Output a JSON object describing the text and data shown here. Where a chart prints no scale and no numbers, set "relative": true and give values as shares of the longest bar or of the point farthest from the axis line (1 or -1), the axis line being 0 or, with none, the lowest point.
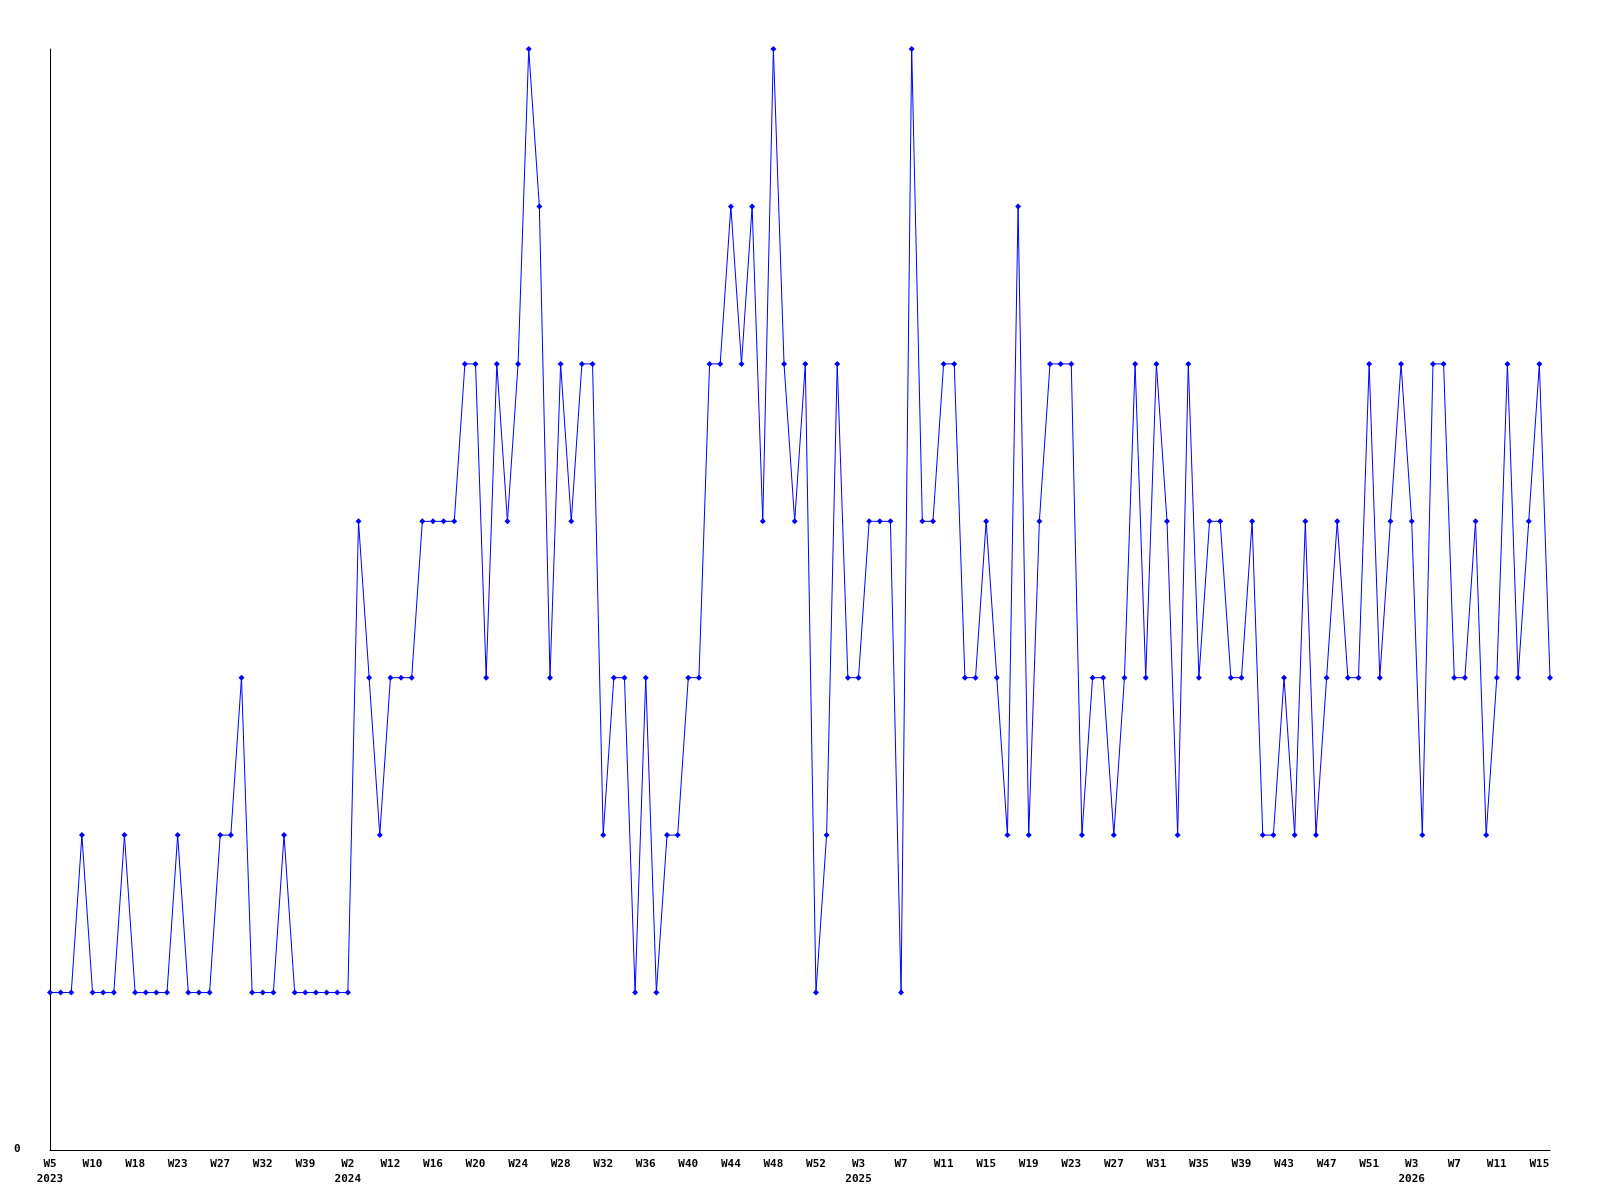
{
  "chart_data": {
    "type": "line",
    "relative": true,
    "marker": "diamond",
    "line_style": "solid",
    "annotations": [
      "0"
    ],
    "categories": [
      "W5\n2023",
      null,
      null,
      null,
      "W10",
      null,
      null,
      null,
      "W18",
      null,
      null,
      null,
      "W23",
      null,
      null,
      null,
      "W27",
      null,
      null,
      null,
      "W32",
      null,
      null,
      null,
      "W39",
      null,
      null,
      null,
      "W2\n2024",
      null,
      null,
      null,
      "W12",
      null,
      null,
      null,
      "W16",
      null,
      null,
      null,
      "W20",
      null,
      null,
      null,
      "W24",
      null,
      null,
      null,
      "W28",
      null,
      null,
      null,
      "W32",
      null,
      null,
      null,
      "W36",
      null,
      null,
      null,
      "W40",
      null,
      null,
      null,
      "W44",
      null,
      null,
      null,
      "W48",
      null,
      null,
      null,
      "W52",
      null,
      null,
      null,
      "W3\n2025",
      null,
      null,
      null,
      "W7",
      null,
      null,
      null,
      "W11",
      null,
      null,
      null,
      "W15",
      null,
      null,
      null,
      "W19",
      null,
      null,
      null,
      "W23",
      null,
      null,
      null,
      "W27",
      null,
      null,
      null,
      "W31",
      null,
      null,
      null,
      "W35",
      null,
      null,
      null,
      "W39",
      null,
      null,
      null,
      "W43",
      null,
      null,
      null,
      "W47",
      null,
      null,
      null,
      "W51",
      null,
      null,
      null,
      "W3\n2026",
      null,
      null,
      null,
      "W7",
      null,
      null,
      null,
      "W11",
      null,
      null,
      null,
      "W15",
      null
    ],
    "series": [
      {
        "color": "#0000ff",
        "values": [
          0.143,
          0.143,
          0.143,
          0.286,
          0.143,
          0.143,
          0.143,
          0.286,
          0.143,
          0.143,
          0.143,
          0.143,
          0.286,
          0.143,
          0.143,
          0.143,
          0.286,
          0.286,
          0.429,
          0.143,
          0.143,
          0.143,
          0.286,
          0.143,
          0.143,
          0.143,
          0.143,
          0.143,
          0.143,
          0.571,
          0.429,
          0.286,
          0.429,
          0.429,
          0.429,
          0.571,
          0.571,
          0.571,
          0.571,
          0.714,
          0.714,
          0.429,
          0.714,
          0.571,
          0.714,
          1,
          0.857,
          0.429,
          0.714,
          0.571,
          0.714,
          0.714,
          0.286,
          0.429,
          0.429,
          0.143,
          0.429,
          0.143,
          0.286,
          0.286,
          0.429,
          0.429,
          0.714,
          0.714,
          0.857,
          0.714,
          0.857,
          0.571,
          1,
          0.714,
          0.571,
          0.714,
          0.143,
          0.286,
          0.714,
          0.429,
          0.429,
          0.571,
          0.571,
          0.571,
          0.143,
          1,
          0.571,
          0.571,
          0.714,
          0.714,
          0.429,
          0.429,
          0.571,
          0.429,
          0.286,
          0.857,
          0.286,
          0.571,
          0.714,
          0.714,
          0.714,
          0.286,
          0.429,
          0.429,
          0.286,
          0.429,
          0.714,
          0.429,
          0.714,
          0.571,
          0.286,
          0.714,
          0.429,
          0.571,
          0.571,
          0.429,
          0.429,
          0.571,
          0.286,
          0.286,
          0.429,
          0.286,
          0.571,
          0.286,
          0.429,
          0.571,
          0.429,
          0.429,
          0.714,
          0.429,
          0.571,
          0.714,
          0.571,
          0.286,
          0.714,
          0.714,
          0.429,
          0.429,
          0.571,
          0.286,
          0.429,
          0.714,
          0.429,
          0.571,
          0.714,
          0.429
        ]
      }
    ]
  }
}
